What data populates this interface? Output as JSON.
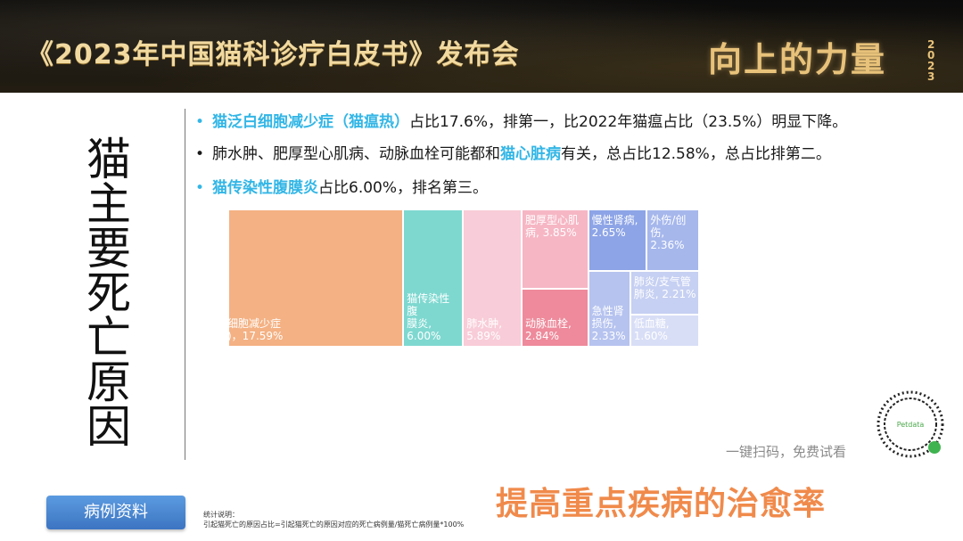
{
  "header": {
    "title": "《2023年中国猫科诊疗白皮书》发布会",
    "slogan": "向上的力量",
    "slogan_year": "2023"
  },
  "side_title": "猫主要死亡原因",
  "bullets": [
    {
      "highlight": "猫泛白细胞减少症（猫瘟热）",
      "text": "占比17.6%，排第一，比2022年猫瘟占比（23.5%）明显下降。"
    },
    {
      "pre": "肺水肿、肥厚型心肌病、动脉血栓可能都和",
      "highlight": "猫心脏病",
      "post": "有关，总占比12.58%，总占比排第二。"
    },
    {
      "highlight": "猫传染性腹膜炎",
      "text": "占比6.00%，排名第三。"
    }
  ],
  "chart_data": {
    "type": "treemap",
    "items": [
      {
        "label": "细胞减少症\n)，17.59%",
        "value": 17.59,
        "color": "#f4b183"
      },
      {
        "label": "猫传染性腹\n膜炎,\n6.00%",
        "value": 6.0,
        "color": "#7ed8d0"
      },
      {
        "label": "肺水肿,\n5.89%",
        "value": 5.89,
        "color": "#f8ccd8"
      },
      {
        "label": "肥厚型心肌\n病, 3.85%",
        "value": 3.85,
        "color": "#f6b6c4"
      },
      {
        "label": "动脉血栓,\n2.84%",
        "value": 2.84,
        "color": "#ee8a9b"
      },
      {
        "label": "慢性肾病,\n2.65%",
        "value": 2.65,
        "color": "#8da4e6"
      },
      {
        "label": "外伤/创\n伤,\n2.36%",
        "value": 2.36,
        "color": "#a6b7ec"
      },
      {
        "label": "急性肾\n损伤,\n2.33%",
        "value": 2.33,
        "color": "#b6c3ef"
      },
      {
        "label": "肺炎/支气管\n肺炎, 2.21%",
        "value": 2.21,
        "color": "#c6d0f2"
      },
      {
        "label": "低血糖,\n1.60%",
        "value": 1.6,
        "color": "#d8def6"
      }
    ]
  },
  "qr": {
    "brand": "Petdata"
  },
  "scan_text": "一键扫码，免费试看",
  "case_button": "病例资料",
  "stat_note": {
    "title": "统计说明：",
    "formula": "引起猫死亡的原因占比=引起猫死亡的原因对应的死亡病例量/猫死亡病例量*100%"
  },
  "bottom_slogan": "提高重点疾病的治愈率"
}
